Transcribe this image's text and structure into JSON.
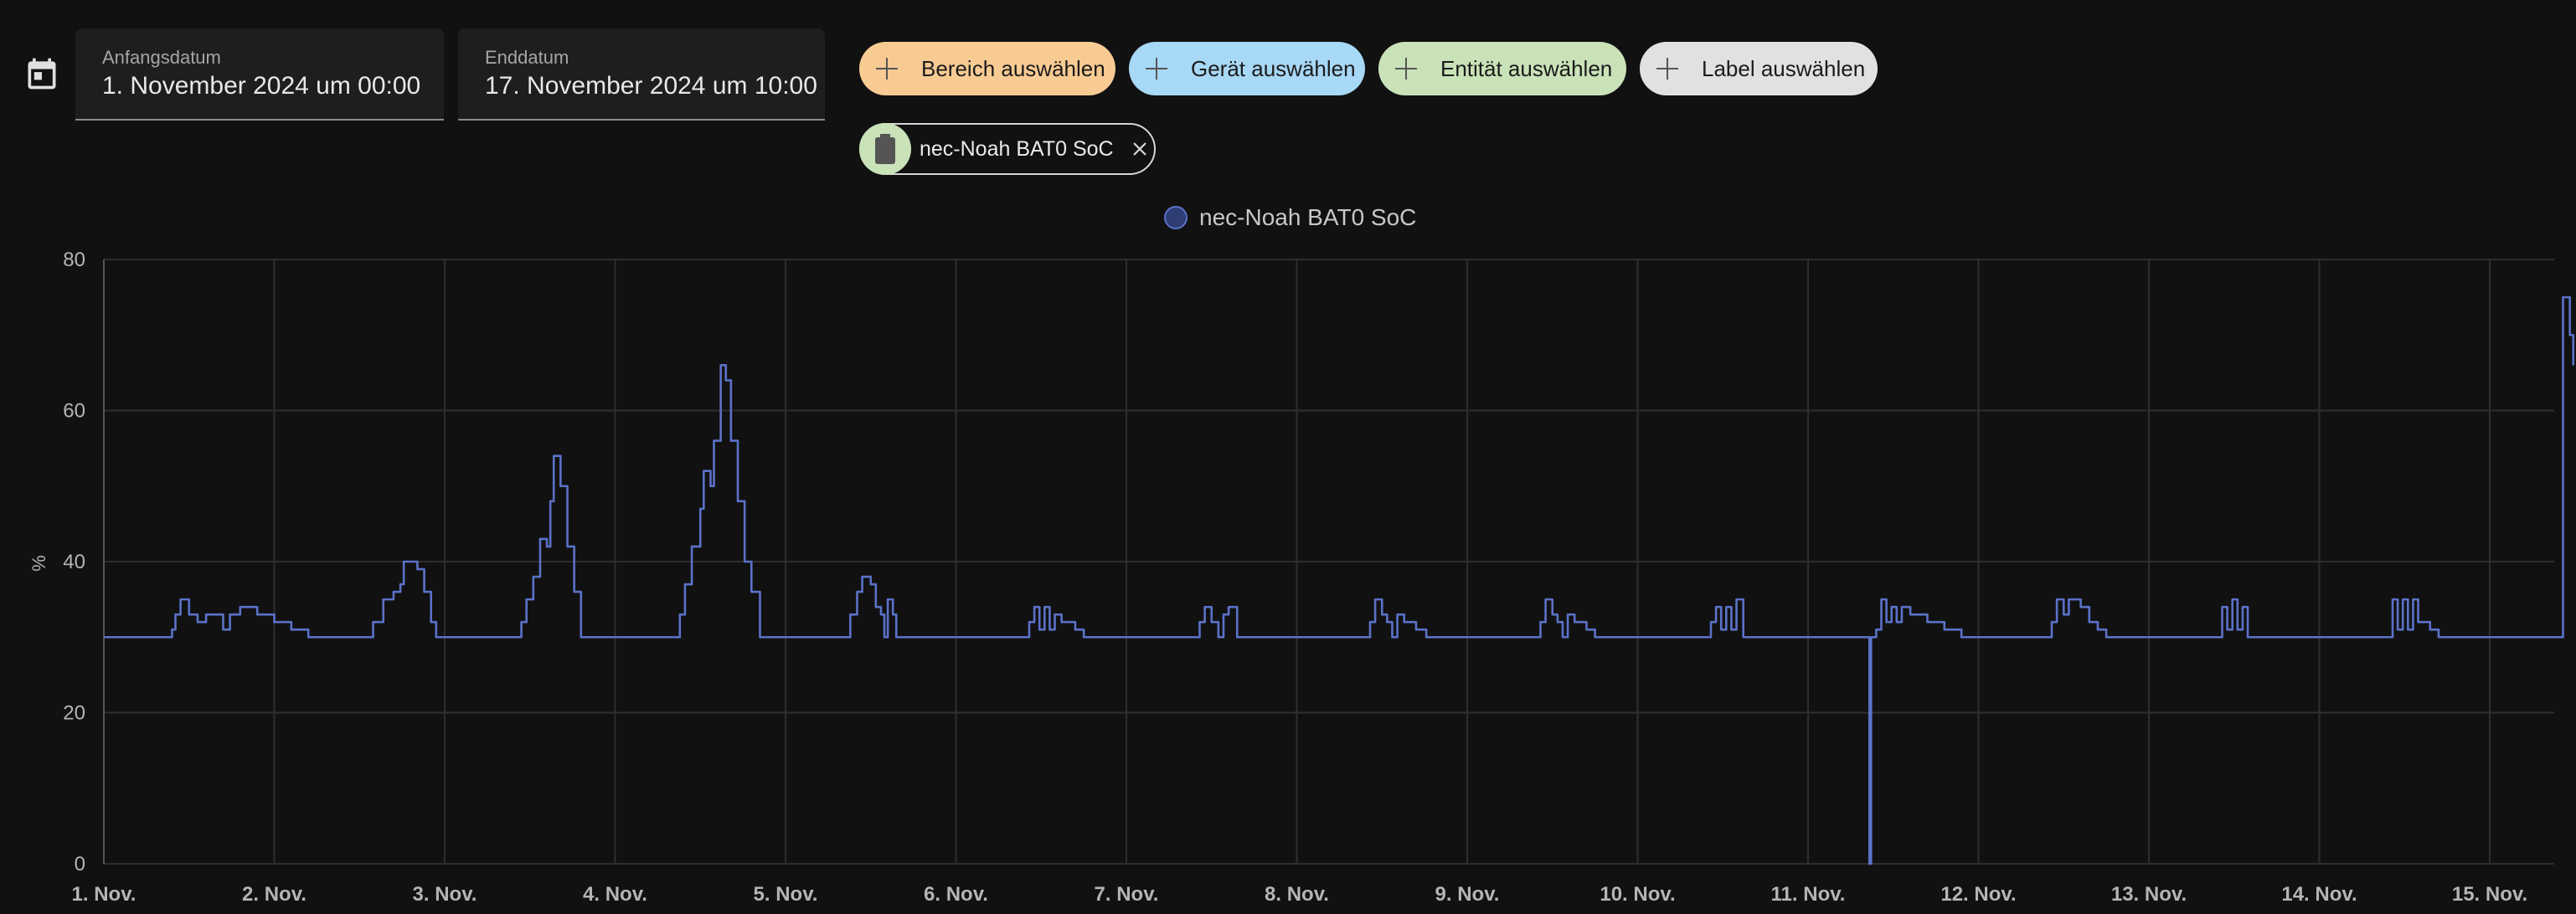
{
  "date_range": {
    "start": {
      "label": "Anfangsdatum",
      "value": "1. November 2024 um 00:00"
    },
    "end": {
      "label": "Enddatum",
      "value": "17. November 2024 um 10:00"
    }
  },
  "target_picker": {
    "area": {
      "label": "Bereich auswählen",
      "color": "#f8cb93"
    },
    "device": {
      "label": "Gerät auswählen",
      "color": "#a7d8f6"
    },
    "entity": {
      "label": "Entität auswählen",
      "color": "#c9e2b8"
    },
    "label": {
      "label": "Label auswählen",
      "color": "#e1e1e1"
    }
  },
  "selected_entity": {
    "name": "nec-Noah BAT0 SoC",
    "icon": "battery-icon",
    "remove_icon": "close-icon"
  },
  "chart_data": {
    "type": "line",
    "legend": [
      "nec-Noah BAT0 SoC"
    ],
    "series": [
      {
        "name": "nec-Noah BAT0 SoC",
        "color": "#5b72c9",
        "points": [
          [
            0,
            30
          ],
          [
            0.38,
            30
          ],
          [
            0.4,
            31
          ],
          [
            0.42,
            33
          ],
          [
            0.45,
            35
          ],
          [
            0.5,
            33
          ],
          [
            0.55,
            32
          ],
          [
            0.6,
            33
          ],
          [
            0.65,
            33
          ],
          [
            0.7,
            31
          ],
          [
            0.74,
            33
          ],
          [
            0.8,
            34
          ],
          [
            0.9,
            33
          ],
          [
            1.0,
            32
          ],
          [
            1.1,
            31
          ],
          [
            1.2,
            30
          ],
          [
            1.4,
            30
          ],
          [
            1.5,
            30
          ],
          [
            1.58,
            32
          ],
          [
            1.64,
            35
          ],
          [
            1.7,
            36
          ],
          [
            1.74,
            37
          ],
          [
            1.76,
            40
          ],
          [
            1.84,
            39
          ],
          [
            1.88,
            36
          ],
          [
            1.92,
            32
          ],
          [
            1.95,
            30
          ],
          [
            2.4,
            30
          ],
          [
            2.45,
            32
          ],
          [
            2.48,
            35
          ],
          [
            2.52,
            38
          ],
          [
            2.56,
            43
          ],
          [
            2.6,
            42
          ],
          [
            2.62,
            48
          ],
          [
            2.64,
            54
          ],
          [
            2.68,
            50
          ],
          [
            2.72,
            42
          ],
          [
            2.76,
            36
          ],
          [
            2.8,
            30
          ],
          [
            3.35,
            30
          ],
          [
            3.38,
            33
          ],
          [
            3.41,
            37
          ],
          [
            3.45,
            42
          ],
          [
            3.5,
            47
          ],
          [
            3.52,
            52
          ],
          [
            3.56,
            50
          ],
          [
            3.58,
            56
          ],
          [
            3.62,
            66
          ],
          [
            3.65,
            64
          ],
          [
            3.68,
            56
          ],
          [
            3.72,
            48
          ],
          [
            3.76,
            40
          ],
          [
            3.8,
            36
          ],
          [
            3.85,
            30
          ],
          [
            4.35,
            30
          ],
          [
            4.38,
            33
          ],
          [
            4.42,
            36
          ],
          [
            4.45,
            38
          ],
          [
            4.5,
            37
          ],
          [
            4.53,
            34
          ],
          [
            4.56,
            33
          ],
          [
            4.58,
            30
          ],
          [
            4.6,
            35
          ],
          [
            4.63,
            33
          ],
          [
            4.65,
            30
          ],
          [
            5.4,
            30
          ],
          [
            5.43,
            32
          ],
          [
            5.46,
            34
          ],
          [
            5.49,
            31
          ],
          [
            5.52,
            34
          ],
          [
            5.55,
            31
          ],
          [
            5.58,
            33
          ],
          [
            5.62,
            32
          ],
          [
            5.7,
            31
          ],
          [
            5.75,
            30
          ],
          [
            6.4,
            30
          ],
          [
            6.43,
            32
          ],
          [
            6.46,
            34
          ],
          [
            6.5,
            32
          ],
          [
            6.54,
            30
          ],
          [
            6.57,
            33
          ],
          [
            6.6,
            34
          ],
          [
            6.65,
            30
          ],
          [
            7.4,
            30
          ],
          [
            7.43,
            32
          ],
          [
            7.46,
            35
          ],
          [
            7.5,
            33
          ],
          [
            7.53,
            32
          ],
          [
            7.56,
            30
          ],
          [
            7.59,
            33
          ],
          [
            7.63,
            32
          ],
          [
            7.7,
            31
          ],
          [
            7.76,
            30
          ],
          [
            8.4,
            30
          ],
          [
            8.43,
            32
          ],
          [
            8.46,
            35
          ],
          [
            8.5,
            33
          ],
          [
            8.53,
            32
          ],
          [
            8.56,
            30
          ],
          [
            8.59,
            33
          ],
          [
            8.63,
            32
          ],
          [
            8.7,
            31
          ],
          [
            8.75,
            30
          ],
          [
            9.4,
            30
          ],
          [
            9.43,
            32
          ],
          [
            9.46,
            34
          ],
          [
            9.49,
            31
          ],
          [
            9.52,
            34
          ],
          [
            9.55,
            31
          ],
          [
            9.58,
            35
          ],
          [
            9.62,
            30
          ],
          [
            10.35,
            30
          ],
          [
            10.36,
            0
          ],
          [
            10.37,
            30
          ],
          [
            10.4,
            31
          ],
          [
            10.43,
            35
          ],
          [
            10.46,
            32
          ],
          [
            10.49,
            34
          ],
          [
            10.52,
            32
          ],
          [
            10.55,
            34
          ],
          [
            10.6,
            33
          ],
          [
            10.7,
            32
          ],
          [
            10.8,
            31
          ],
          [
            10.9,
            30
          ],
          [
            11.4,
            30
          ],
          [
            11.43,
            32
          ],
          [
            11.46,
            35
          ],
          [
            11.5,
            33
          ],
          [
            11.53,
            35
          ],
          [
            11.57,
            35
          ],
          [
            11.6,
            34
          ],
          [
            11.65,
            32
          ],
          [
            11.7,
            31
          ],
          [
            11.75,
            30
          ],
          [
            12.4,
            30
          ],
          [
            12.43,
            34
          ],
          [
            12.46,
            31
          ],
          [
            12.49,
            35
          ],
          [
            12.52,
            31
          ],
          [
            12.55,
            34
          ],
          [
            12.58,
            30
          ],
          [
            13.4,
            30
          ],
          [
            13.43,
            35
          ],
          [
            13.46,
            31
          ],
          [
            13.49,
            35
          ],
          [
            13.52,
            31
          ],
          [
            13.55,
            35
          ],
          [
            13.58,
            32
          ],
          [
            13.65,
            31
          ],
          [
            13.7,
            30
          ],
          [
            14.35,
            30
          ],
          [
            14.4,
            30
          ],
          [
            14.43,
            75
          ],
          [
            14.47,
            70
          ],
          [
            14.49,
            66
          ]
        ]
      }
    ],
    "x_ticks": [
      "1. Nov.",
      "2. Nov.",
      "3. Nov.",
      "4. Nov.",
      "5. Nov.",
      "6. Nov.",
      "7. Nov.",
      "8. Nov.",
      "9. Nov.",
      "10. Nov.",
      "11. Nov.",
      "12. Nov.",
      "13. Nov.",
      "14. Nov.",
      "15. Nov."
    ],
    "y_ticks": [
      0,
      20,
      40,
      60,
      80
    ],
    "ylabel": "%",
    "ylim": [
      0,
      80
    ],
    "grid": true,
    "legend_position": "top-center"
  }
}
